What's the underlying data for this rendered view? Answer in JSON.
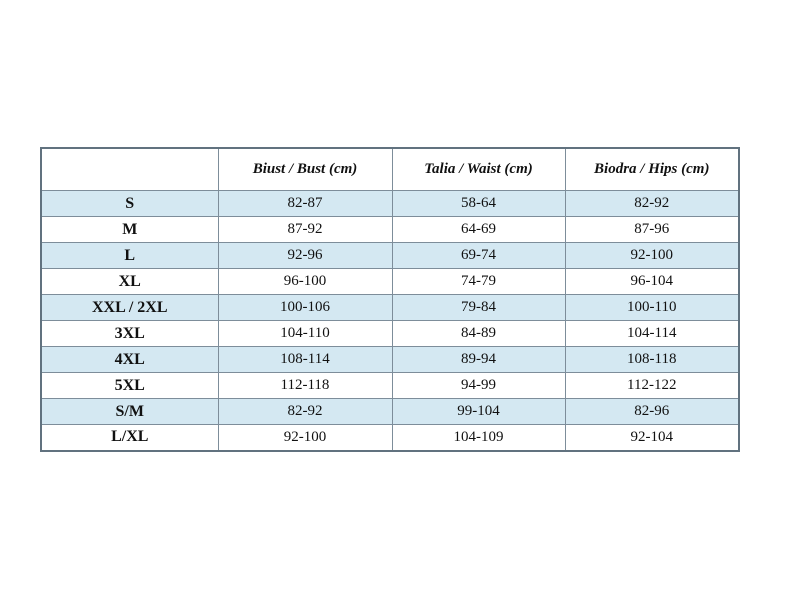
{
  "size_chart": {
    "columns": [
      {
        "label": ""
      },
      {
        "label": "Biust / Bust (cm)"
      },
      {
        "label": "Talia / Waist (cm)"
      },
      {
        "label": "Biodra / Hips (cm)"
      }
    ],
    "rows": [
      {
        "size": "S",
        "bust": "82-87",
        "waist": "58-64",
        "hips": "82-92",
        "shaded": true
      },
      {
        "size": "M",
        "bust": "87-92",
        "waist": "64-69",
        "hips": "87-96",
        "shaded": false
      },
      {
        "size": "L",
        "bust": "92-96",
        "waist": "69-74",
        "hips": "92-100",
        "shaded": true
      },
      {
        "size": "XL",
        "bust": "96-100",
        "waist": "74-79",
        "hips": "96-104",
        "shaded": false
      },
      {
        "size": "XXL / 2XL",
        "bust": "100-106",
        "waist": "79-84",
        "hips": "100-110",
        "shaded": true
      },
      {
        "size": "3XL",
        "bust": "104-110",
        "waist": "84-89",
        "hips": "104-114",
        "shaded": false
      },
      {
        "size": "4XL",
        "bust": "108-114",
        "waist": "89-94",
        "hips": "108-118",
        "shaded": true
      },
      {
        "size": "5XL",
        "bust": "112-118",
        "waist": "94-99",
        "hips": "112-122",
        "shaded": false
      },
      {
        "size": "S/M",
        "bust": "82-92",
        "waist": "99-104",
        "hips": "82-96",
        "shaded": true
      },
      {
        "size": "L/XL",
        "bust": "92-100",
        "waist": "104-109",
        "hips": "92-104",
        "shaded": false
      }
    ],
    "colors": {
      "shaded_row": "#d4e8f2",
      "plain_row": "#ffffff",
      "border": "#7d8d9a",
      "outer_border": "#61727f",
      "text": "#111111"
    }
  }
}
